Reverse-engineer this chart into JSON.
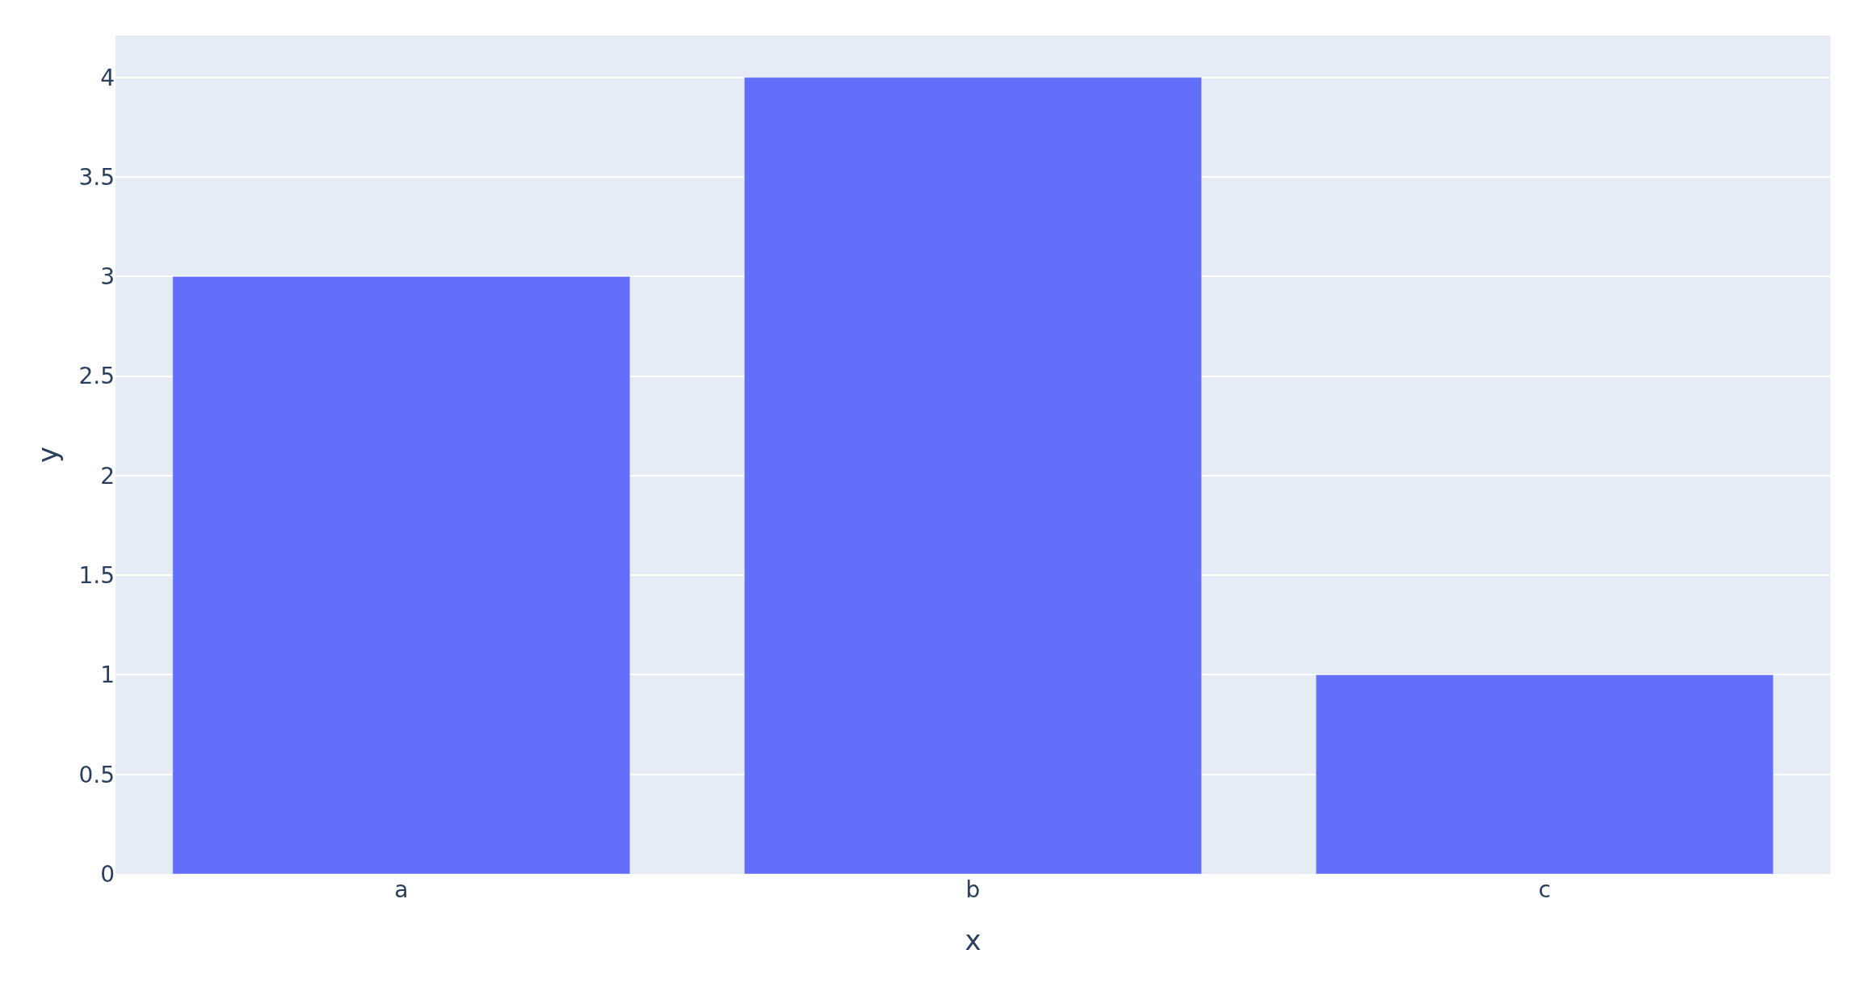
{
  "chart_data": {
    "type": "bar",
    "xlabel": "x",
    "ylabel": "y",
    "categories": [
      "a",
      "b",
      "c"
    ],
    "series": [
      {
        "color": "#636efa",
        "values": [
          3,
          4,
          1
        ]
      }
    ],
    "ylim": [
      0,
      4.21
    ],
    "yticks": [
      0,
      0.5,
      1,
      1.5,
      2,
      2.5,
      3,
      3.5,
      4
    ],
    "grid": "y"
  }
}
